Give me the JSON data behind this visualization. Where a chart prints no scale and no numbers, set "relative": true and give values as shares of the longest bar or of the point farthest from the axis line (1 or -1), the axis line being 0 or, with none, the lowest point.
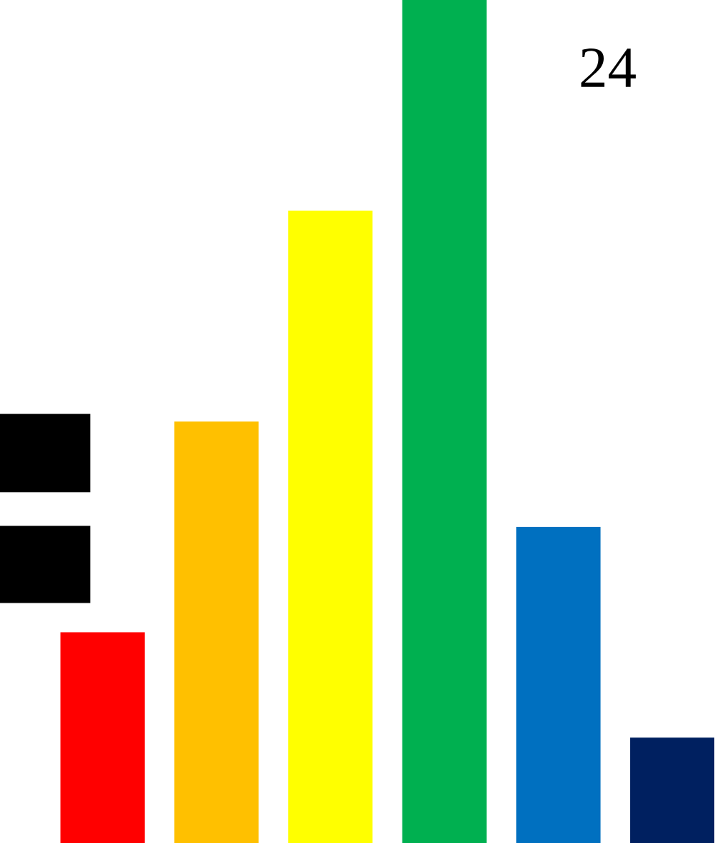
{
  "chart_data": {
    "type": "bar",
    "relative": true,
    "categories": [
      null,
      null,
      null,
      null,
      null,
      null
    ],
    "values": [
      0.25,
      0.5,
      0.75,
      1,
      0.375,
      0.125
    ],
    "colors": [
      "#ff0000",
      "#ffc000",
      "#ffff00",
      "#00b050",
      "#0070c0",
      "#002060"
    ],
    "annotations": [
      "24"
    ]
  }
}
